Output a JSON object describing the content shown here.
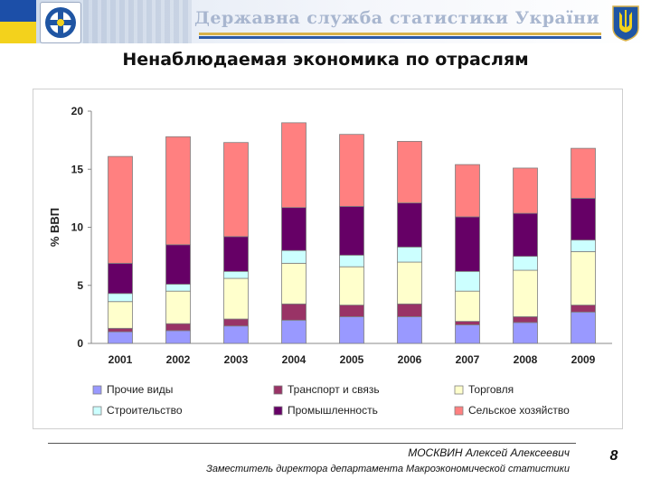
{
  "header": {
    "agency": "Державна служба статистики України"
  },
  "title": "Ненаблюдаемая экономика  по отраслям",
  "chart_data": {
    "type": "stacked_bar",
    "title": "",
    "xlabel": "",
    "ylabel": "% ВВП",
    "ylim": [
      0,
      20
    ],
    "yticks": [
      0,
      5,
      10,
      15,
      20
    ],
    "grid": false,
    "legend_position": "bottom",
    "categories": [
      "2001",
      "2002",
      "2003",
      "2004",
      "2005",
      "2006",
      "2007",
      "2008",
      "2009"
    ],
    "series": [
      {
        "name": "Прочие виды",
        "color": "#9999ff",
        "values": [
          1.0,
          1.1,
          1.5,
          2.0,
          2.3,
          2.3,
          1.6,
          1.8,
          2.7
        ]
      },
      {
        "name": "Транспорт и связь",
        "color": "#993366",
        "values": [
          0.3,
          0.6,
          0.6,
          1.4,
          1.0,
          1.1,
          0.3,
          0.5,
          0.6
        ]
      },
      {
        "name": "Торговля",
        "color": "#ffffcc",
        "values": [
          2.3,
          2.8,
          3.5,
          3.5,
          3.3,
          3.6,
          2.6,
          4.0,
          4.6
        ]
      },
      {
        "name": "Строительство",
        "color": "#ccffff",
        "values": [
          0.7,
          0.6,
          0.6,
          1.1,
          1.0,
          1.3,
          1.7,
          1.2,
          1.0
        ]
      },
      {
        "name": "Промышленность",
        "color": "#660066",
        "values": [
          2.6,
          3.4,
          3.0,
          3.7,
          4.2,
          3.8,
          4.7,
          3.7,
          3.6
        ]
      },
      {
        "name": "Сельское хозяйство",
        "color": "#ff8080",
        "values": [
          9.2,
          9.3,
          8.1,
          7.3,
          6.2,
          5.3,
          4.5,
          3.9,
          4.3
        ]
      }
    ]
  },
  "footer": {
    "author": "МОСКВИН  Алексей Алексеевич",
    "position": "Заместитель директора департамента Макроэкономической статистики",
    "page_number": "8"
  }
}
